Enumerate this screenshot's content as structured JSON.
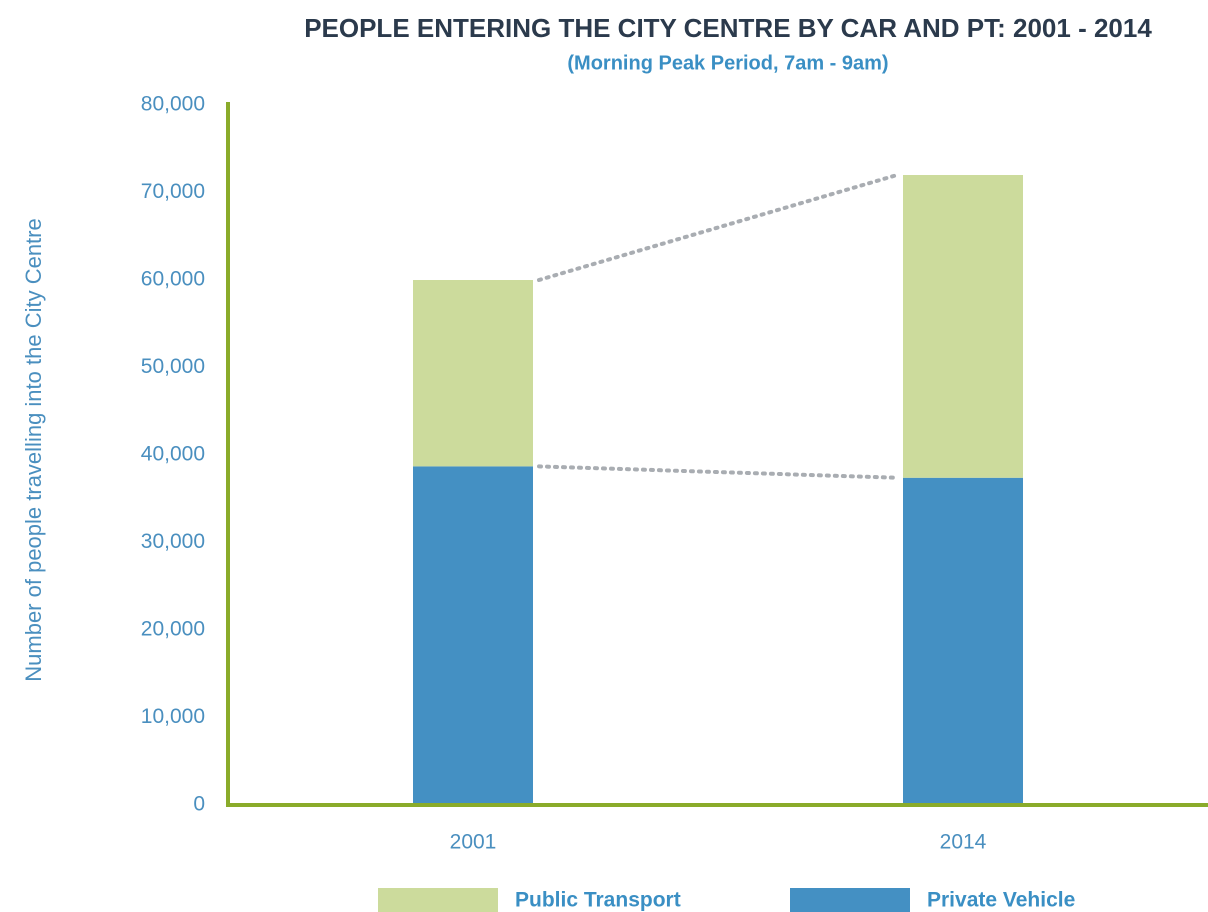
{
  "chart_data": {
    "type": "stacked_bar",
    "title": "PEOPLE ENTERING THE CITY CENTRE BY CAR AND PT: 2001 - 2014",
    "subtitle": "(Morning Peak Period, 7am - 9am)",
    "y_label": "Number of people travelling into the City Centre",
    "categories": [
      "2001",
      "2014"
    ],
    "series": [
      {
        "name": "Private Vehicle",
        "color": "#4490c3",
        "values": [
          38700,
          37400
        ]
      },
      {
        "name": "Public Transport",
        "color": "#ccdb9c",
        "values": [
          21300,
          34600
        ]
      }
    ],
    "ylim": [
      0,
      80000
    ],
    "yticks": [
      0,
      {
        "value": 10000,
        "label": "10,000"
      },
      {
        "value": 20000,
        "label": "20,000"
      },
      {
        "value": 30000,
        "label": "30,000"
      },
      {
        "value": 40000,
        "label": "40,000"
      },
      {
        "value": 50000,
        "label": "50,000"
      },
      {
        "value": 60000,
        "label": "60,000"
      },
      {
        "value": 70000,
        "label": "70,000"
      },
      {
        "value": 80000,
        "label": "80,000"
      }
    ],
    "grid": false,
    "legend": "bottom"
  }
}
